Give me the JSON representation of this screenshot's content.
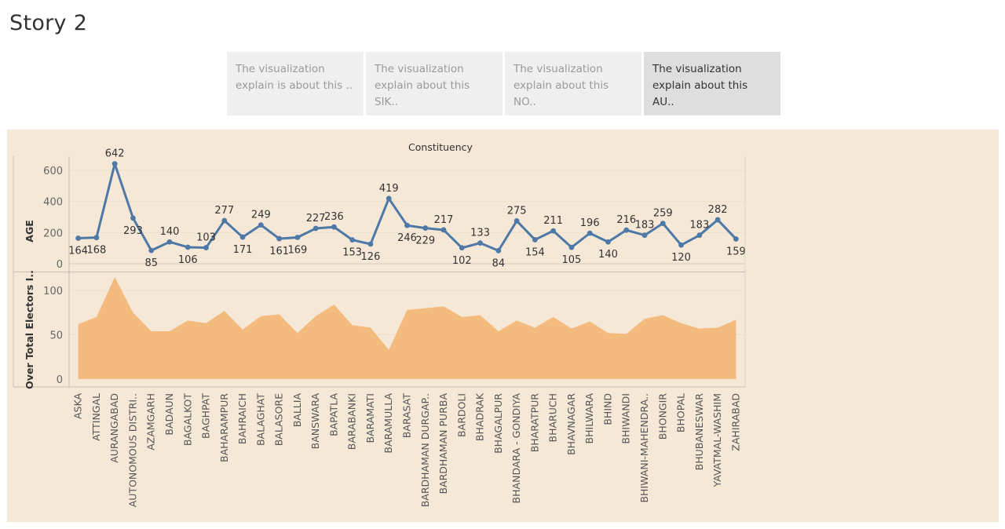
{
  "story": {
    "title": "Story 2"
  },
  "nav": {
    "points": [
      {
        "line1": "The visualization",
        "line2": "explain is about this ..",
        "active": false
      },
      {
        "line1": "The visualization",
        "line2": "explain about this SIK..",
        "active": false
      },
      {
        "line1": "The visualization",
        "line2": "explain about this NO..",
        "active": false
      },
      {
        "line1": "The visualization",
        "line2": "explain about this AU..",
        "active": true
      }
    ]
  },
  "chart_data": {
    "type": "line",
    "title": "Constituency",
    "categories": [
      "ASKA",
      "ATTINGAL",
      "AURANGABAD",
      "AUTONOMOUS DISTRI..",
      "AZAMGARH",
      "BADAUN",
      "BAGALKOT",
      "BAGHPAT",
      "BAHARAMPUR",
      "BAHRAICH",
      "BALAGHAT",
      "BALASORE",
      "BALLIA",
      "BANSWARA",
      "BAPATLA",
      "BARABANKI",
      "BARAMATI",
      "BARAMULLA",
      "BARASAT",
      "BARDHAMAN DURGAP..",
      "BARDHAMAN PURBA",
      "BARDOLI",
      "BHADRAK",
      "BHAGALPUR",
      "BHANDARA - GONDIYA",
      "BHARATPUR",
      "BHARUCH",
      "BHAVNAGAR",
      "BHILWARA",
      "BHIND",
      "BHIWANDI",
      "BHIWANI-MAHENDRA..",
      "BHONGIR",
      "BHOPAL",
      "BHUBANESWAR",
      "YAVATMAL-WASHIM",
      "ZAHIRABAD"
    ],
    "panels": [
      {
        "type": "line",
        "ylabel": "AGE",
        "ylim": [
          0,
          650
        ],
        "yticks": [
          0,
          200,
          400,
          600
        ],
        "color": "#4e79a7",
        "values": [
          164,
          168,
          642,
          293,
          85,
          140,
          106,
          103,
          277,
          171,
          249,
          161,
          169,
          227,
          236,
          153,
          126,
          419,
          246,
          229,
          217,
          102,
          133,
          84,
          275,
          154,
          211,
          105,
          196,
          140,
          216,
          183,
          259,
          120,
          183,
          282,
          159
        ],
        "label_position": [
          "below",
          "below",
          "above",
          "below",
          "below",
          "above",
          "below",
          "above",
          "above",
          "below",
          "above",
          "below",
          "below",
          "above",
          "above",
          "below",
          "below",
          "above",
          "below",
          "below",
          "above",
          "below",
          "above",
          "below",
          "above",
          "below",
          "above",
          "below",
          "above",
          "below",
          "above",
          "above",
          "above",
          "below",
          "above",
          "above",
          "below"
        ]
      },
      {
        "type": "area",
        "ylabel": "Over Total Electors I..",
        "ylim": [
          0,
          115
        ],
        "yticks": [
          0,
          50,
          100
        ],
        "color": "#f4bb7e",
        "values": [
          62,
          70,
          115,
          75,
          54,
          54,
          66,
          63,
          77,
          56,
          71,
          73,
          52,
          71,
          84,
          61,
          58,
          33,
          78,
          80,
          82,
          70,
          72,
          54,
          66,
          58,
          70,
          57,
          65,
          52,
          51,
          68,
          72,
          63,
          57,
          58,
          67
        ]
      }
    ],
    "grid": true,
    "legend": "none"
  }
}
